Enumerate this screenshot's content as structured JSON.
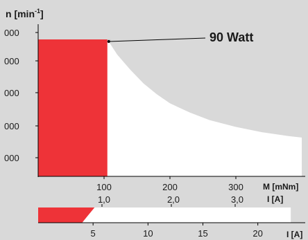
{
  "chart_data": [
    {
      "type": "area",
      "ylabel_main": "n [min",
      "ylabel_sup": "-1",
      "ylabel_close": "]",
      "xlabel": "M [mNm]",
      "xlabel2": "I [A]",
      "annotation": "90 Watt",
      "y_tick_labels": [
        "000",
        "000",
        "000",
        "000",
        "000"
      ],
      "x_ticks": [
        100,
        200,
        300
      ],
      "x2_ticks": [
        "1,0",
        "2,0",
        "3,0"
      ],
      "xlim": [
        0,
        400
      ],
      "grid": false,
      "continuous_region": {
        "x": [
          0,
          105
        ],
        "top_level": 0.9,
        "color": "#ee3338"
      },
      "operating_envelope": {
        "color": "#ffffff",
        "power_limit_curve": {
          "x": [
            105,
            120,
            140,
            160,
            180,
            200,
            230,
            260,
            300,
            340,
            380,
            400
          ],
          "y": [
            0.9,
            0.8,
            0.7,
            0.61,
            0.54,
            0.48,
            0.42,
            0.37,
            0.325,
            0.29,
            0.265,
            0.255
          ]
        }
      },
      "speed_limit_color": "#b3b3b3"
    },
    {
      "type": "bar",
      "x_ticks": [
        5,
        10,
        15,
        20
      ],
      "xlabel": "I [A]",
      "red_region_end": 4,
      "white_region_end": 23,
      "colors": {
        "red": "#ee3338",
        "white": "#ffffff"
      }
    }
  ]
}
